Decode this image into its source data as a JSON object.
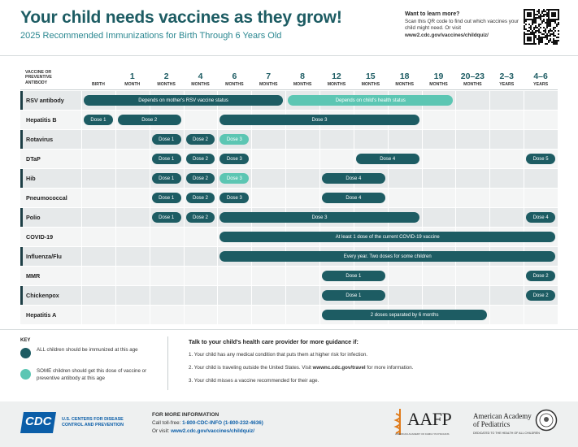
{
  "header": {
    "title": "Your child needs vaccines as they grow!",
    "subtitle": "2025 Recommended Immunizations for Birth Through 6 Years Old",
    "learn_more": {
      "heading": "Want to learn more?",
      "text": "Scan this QR code to find out which vaccines your child might need. Or visit",
      "url": "www2.cdc.gov/vaccines/childquiz/"
    }
  },
  "schedule": {
    "corner_label": "VACCINE OR PREVENTIVE ANTIBODY",
    "columns": [
      {
        "unit": "BIRTH"
      },
      {
        "number": "1",
        "unit": "MONTH"
      },
      {
        "number": "2",
        "unit": "MONTHS"
      },
      {
        "number": "4",
        "unit": "MONTHS"
      },
      {
        "number": "6",
        "unit": "MONTHS"
      },
      {
        "number": "7",
        "unit": "MONTHS"
      },
      {
        "number": "8",
        "unit": "MONTHS"
      },
      {
        "number": "12",
        "unit": "MONTHS"
      },
      {
        "number": "15",
        "unit": "MONTHS"
      },
      {
        "number": "18",
        "unit": "MONTHS"
      },
      {
        "number": "19",
        "unit": "MONTHS"
      },
      {
        "number": "20–23",
        "unit": "MONTHS"
      },
      {
        "number": "2–3",
        "unit": "YEARS"
      },
      {
        "number": "4–6",
        "unit": "YEARS"
      }
    ],
    "rows": [
      {
        "name": "RSV antibody",
        "bars": [
          {
            "label": "Depends on mother's RSV vaccine status",
            "span": [
              0,
              5
            ],
            "color": "#1d5c63"
          },
          {
            "label": "Depends on child's health status",
            "span": [
              6,
              10
            ],
            "color": "#5cc6b3"
          }
        ]
      },
      {
        "name": "Hepatitis B",
        "bars": [
          {
            "label": "Dose 1",
            "span": [
              0,
              0
            ],
            "color": "#1d5c63"
          },
          {
            "label": "Dose 2",
            "span": [
              1,
              2
            ],
            "color": "#1d5c63"
          },
          {
            "label": "Dose 3",
            "span": [
              4,
              9
            ],
            "color": "#1d5c63"
          }
        ]
      },
      {
        "name": "Rotavirus",
        "bars": [
          {
            "label": "Dose 1",
            "span": [
              2,
              2
            ],
            "color": "#1d5c63"
          },
          {
            "label": "Dose 2",
            "span": [
              3,
              3
            ],
            "color": "#1d5c63"
          },
          {
            "label": "Dose 3",
            "span": [
              4,
              4
            ],
            "color": "#5cc6b3"
          }
        ]
      },
      {
        "name": "DTaP",
        "bars": [
          {
            "label": "Dose 1",
            "span": [
              2,
              2
            ],
            "color": "#1d5c63"
          },
          {
            "label": "Dose 2",
            "span": [
              3,
              3
            ],
            "color": "#1d5c63"
          },
          {
            "label": "Dose 3",
            "span": [
              4,
              4
            ],
            "color": "#1d5c63"
          },
          {
            "label": "Dose 4",
            "span": [
              8,
              9
            ],
            "color": "#1d5c63"
          },
          {
            "label": "Dose 5",
            "span": [
              13,
              13
            ],
            "color": "#1d5c63"
          }
        ]
      },
      {
        "name": "Hib",
        "bars": [
          {
            "label": "Dose 1",
            "span": [
              2,
              2
            ],
            "color": "#1d5c63"
          },
          {
            "label": "Dose 2",
            "span": [
              3,
              3
            ],
            "color": "#1d5c63"
          },
          {
            "label": "Dose 3",
            "span": [
              4,
              4
            ],
            "color": "#5cc6b3"
          },
          {
            "label": "Dose 4",
            "span": [
              7,
              8
            ],
            "color": "#1d5c63"
          }
        ]
      },
      {
        "name": "Pneumococcal",
        "bars": [
          {
            "label": "Dose 1",
            "span": [
              2,
              2
            ],
            "color": "#1d5c63"
          },
          {
            "label": "Dose 2",
            "span": [
              3,
              3
            ],
            "color": "#1d5c63"
          },
          {
            "label": "Dose 3",
            "span": [
              4,
              4
            ],
            "color": "#1d5c63"
          },
          {
            "label": "Dose 4",
            "span": [
              7,
              8
            ],
            "color": "#1d5c63"
          }
        ]
      },
      {
        "name": "Polio",
        "bars": [
          {
            "label": "Dose 1",
            "span": [
              2,
              2
            ],
            "color": "#1d5c63"
          },
          {
            "label": "Dose 2",
            "span": [
              3,
              3
            ],
            "color": "#1d5c63"
          },
          {
            "label": "Dose 3",
            "span": [
              4,
              9
            ],
            "color": "#1d5c63"
          },
          {
            "label": "Dose 4",
            "span": [
              13,
              13
            ],
            "color": "#1d5c63"
          }
        ]
      },
      {
        "name": "COVID-19",
        "bars": [
          {
            "label": "At least 1 dose of the current COVID-19 vaccine",
            "span": [
              4,
              13
            ],
            "color": "#1d5c63"
          }
        ]
      },
      {
        "name": "Influenza/Flu",
        "bars": [
          {
            "label": "Every year. Two doses for some children",
            "span": [
              4,
              13
            ],
            "color": "#1d5c63"
          }
        ]
      },
      {
        "name": "MMR",
        "bars": [
          {
            "label": "Dose 1",
            "span": [
              7,
              8
            ],
            "color": "#1d5c63"
          },
          {
            "label": "Dose 2",
            "span": [
              13,
              13
            ],
            "color": "#1d5c63"
          }
        ]
      },
      {
        "name": "Chickenpox",
        "bars": [
          {
            "label": "Dose 1",
            "span": [
              7,
              8
            ],
            "color": "#1d5c63"
          },
          {
            "label": "Dose 2",
            "span": [
              13,
              13
            ],
            "color": "#1d5c63"
          }
        ]
      },
      {
        "name": "Hepatitis A",
        "bars": [
          {
            "label": "2 doses separated by 6 months",
            "span": [
              7,
              11
            ],
            "color": "#1d5c63"
          }
        ]
      }
    ]
  },
  "key": {
    "title": "KEY",
    "items": [
      {
        "color": "#1d5c63",
        "text": "ALL children should be immunized at this age"
      },
      {
        "color": "#5cc6b3",
        "text": "SOME children should get this dose of vaccine or preventive antibody at this age"
      }
    ]
  },
  "guidance": {
    "heading": "Talk to your child's health care provider for more guidance if:",
    "items": [
      {
        "parts": [
          {
            "text": "1. Your child has any medical condition that puts them at higher risk for infection."
          }
        ]
      },
      {
        "parts": [
          {
            "text": "2. Your child is traveling outside the United States. Visit "
          },
          {
            "text": "wwwnc.cdc.gov/travel",
            "bold": true
          },
          {
            "text": " for more information."
          }
        ]
      },
      {
        "parts": [
          {
            "text": "3. Your child misses a vaccine recommended for their age."
          }
        ]
      }
    ]
  },
  "footer": {
    "cdc_logo": "CDC",
    "cdc_name": "U.S. CENTERS FOR DISEASE CONTROL AND PREVENTION",
    "info_heading": "FOR MORE INFORMATION",
    "info_lines": [
      {
        "parts": [
          {
            "text": "Call toll-free: "
          },
          {
            "text": "1-800-CDC-INFO (1-800-232-4636)",
            "bold": true
          }
        ]
      },
      {
        "parts": [
          {
            "text": "Or visit: "
          },
          {
            "text": "www2.cdc.gov/vaccines/childquiz/",
            "bold": true
          }
        ]
      }
    ],
    "aafp_logo": "AAFP",
    "aafp_name": "AMERICAN ACADEMY OF FAMILY PHYSICIANS",
    "aap_name": "American Academy of Pediatrics",
    "aap_tagline": "DEDICATED TO THE HEALTH OF ALL CHILDREN"
  }
}
